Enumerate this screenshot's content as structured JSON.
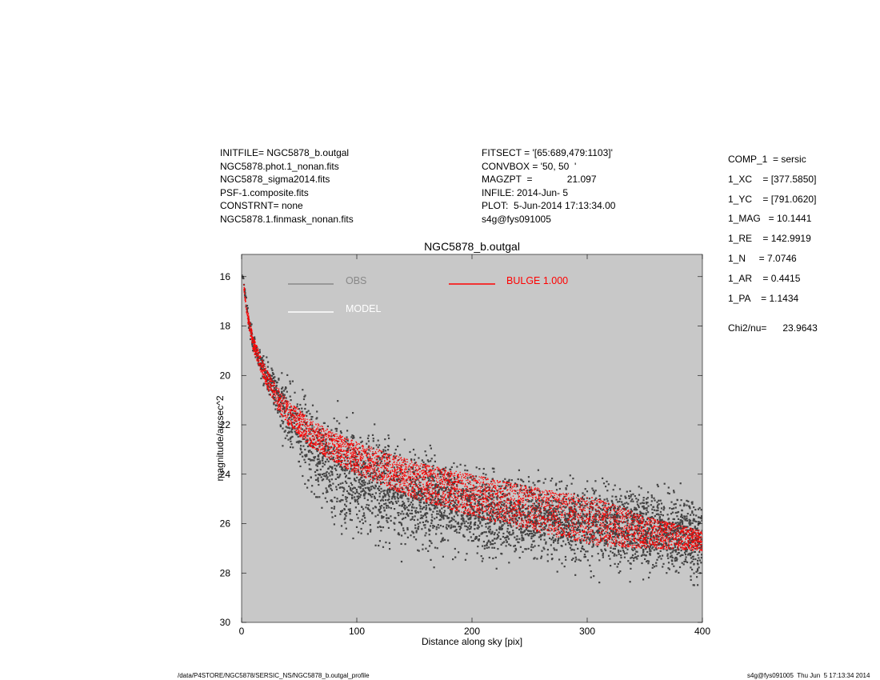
{
  "header_left": [
    "INITFILE= NGC5878_b.outgal",
    "NGC5878.phot.1_nonan.fits",
    "NGC5878_sigma2014.fits",
    "PSF-1.composite.fits",
    "CONSTRNT= none",
    "NGC5878.1.finmask_nonan.fits"
  ],
  "header_mid": [
    "FITSECT = '[65:689,479:1103]'",
    "CONVBOX = '50, 50  '",
    "MAGZPT  =             21.097",
    "INFILE: 2014-Jun- 5",
    "PLOT:  5-Jun-2014 17:13:34.00",
    "s4g@fys091005"
  ],
  "components": [
    "COMP_1  = sersic",
    "1_XC    = [377.5850]",
    "1_YC    = [791.0620]",
    "1_MAG   = 10.1441",
    "1_RE    = 142.9919",
    "1_N     = 7.0746",
    "1_AR    = 0.4415",
    "1_PA    = 1.1434"
  ],
  "chi2": "Chi2/nu=      23.9643",
  "footer_left": "/data/P4STORE/NGC5878/SERSIC_NS/NGC5878_b.outgal_profile",
  "footer_right": "s4g@fys091005  Thu Jun  5 17:13:34 2014",
  "colors": {
    "panel_bg": "#c8c8c8",
    "obs": "#444444",
    "model": "#ffffff",
    "bulge": "#ff0000"
  },
  "chart_data": {
    "type": "scatter",
    "title": "NGC5878_b.outgal",
    "xlabel": "Distance along sky [pix]",
    "ylabel": "magnitude/arcsec^2",
    "xlim": [
      0,
      400
    ],
    "ylim": [
      30,
      15.1
    ],
    "y_inverted": true,
    "xticks": [
      0,
      100,
      200,
      300,
      400
    ],
    "yticks": [
      16,
      18,
      20,
      22,
      24,
      26,
      28,
      30
    ],
    "grid": false,
    "legend": [
      {
        "label": "OBS",
        "color": "#888888",
        "position": "top-left"
      },
      {
        "label": "MODEL",
        "color": "#ffffff",
        "position": "top-left"
      },
      {
        "label": "BULGE  1.000",
        "color": "#ff0000",
        "position": "top-center"
      }
    ],
    "series": [
      {
        "name": "OBS",
        "kind": "scatter-cloud",
        "color": "#444444",
        "x": [
          1,
          5,
          10,
          20,
          30,
          40,
          50,
          60,
          80,
          100,
          120,
          150,
          180,
          200,
          250,
          300,
          350,
          400
        ],
        "y_center": [
          16.0,
          17.5,
          18.7,
          19.8,
          20.7,
          21.6,
          22.3,
          22.9,
          23.7,
          24.2,
          24.6,
          25.0,
          25.3,
          25.5,
          25.8,
          26.0,
          26.3,
          26.6
        ],
        "y_spread": [
          0.1,
          0.3,
          0.4,
          0.6,
          0.9,
          1.3,
          1.6,
          1.8,
          2.0,
          2.0,
          1.9,
          1.8,
          1.7,
          1.6,
          1.5,
          1.5,
          1.6,
          1.7
        ]
      },
      {
        "name": "BULGE  1.000",
        "kind": "band",
        "color": "#ff0000",
        "x": [
          2,
          5,
          10,
          20,
          30,
          40,
          60,
          80,
          100,
          150,
          200,
          250,
          300,
          310,
          350,
          400
        ],
        "y_upper": [
          16.3,
          17.3,
          18.4,
          19.6,
          20.4,
          21.0,
          21.8,
          22.3,
          22.7,
          23.5,
          24.0,
          24.5,
          24.9,
          25.0,
          25.7,
          26.3
        ],
        "y_lower": [
          16.6,
          17.8,
          19.0,
          20.3,
          21.3,
          22.0,
          22.9,
          23.5,
          24.0,
          25.0,
          25.7,
          26.3,
          26.8,
          26.9,
          27.0,
          27.1
        ]
      }
    ]
  }
}
